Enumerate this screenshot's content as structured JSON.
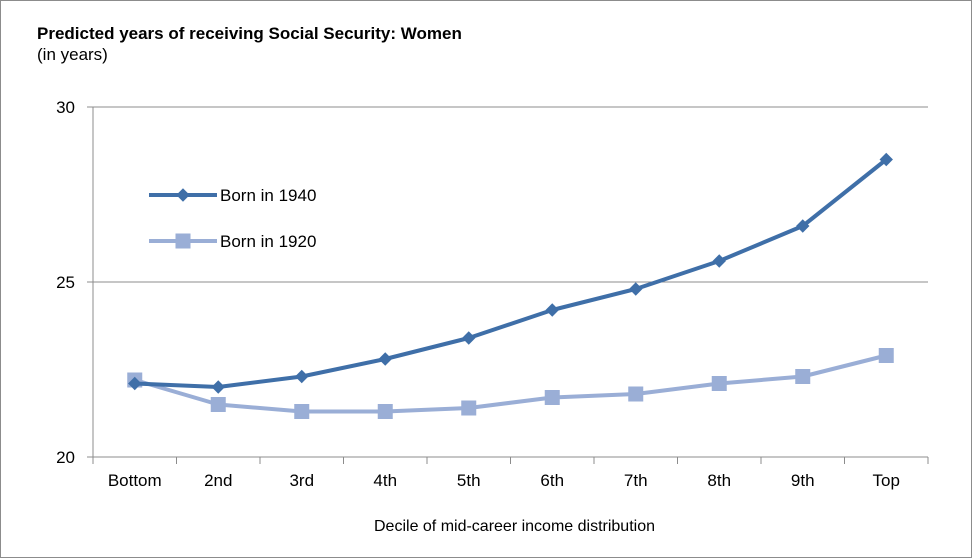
{
  "chart_data": {
    "type": "line",
    "title": "Predicted years of receiving Social Security: Women",
    "subtitle": "(in years)",
    "xlabel": "Decile of mid-career income distribution",
    "ylabel": "",
    "categories": [
      "Bottom",
      "2nd",
      "3rd",
      "4th",
      "5th",
      "6th",
      "7th",
      "8th",
      "9th",
      "Top"
    ],
    "ylim": [
      20,
      30
    ],
    "yticks": [
      "20",
      "25",
      "30"
    ],
    "grid": "horizontal",
    "legend_position": "upper-left",
    "series": [
      {
        "name": "Born in 1940",
        "values": [
          22.1,
          22.0,
          22.3,
          22.8,
          23.4,
          24.2,
          24.8,
          25.6,
          26.6,
          28.5
        ],
        "color": "#3f6fa8",
        "marker": "diamond"
      },
      {
        "name": "Born in 1920",
        "values": [
          22.2,
          21.5,
          21.3,
          21.3,
          21.4,
          21.7,
          21.8,
          22.1,
          22.3,
          22.9
        ],
        "color": "#9aaed6",
        "marker": "square"
      }
    ]
  }
}
